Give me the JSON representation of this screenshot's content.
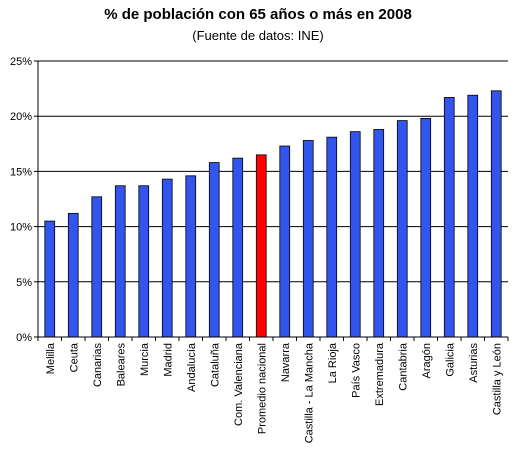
{
  "chart_data": {
    "type": "bar",
    "title": "% de población con 65 años o más en 2008",
    "subtitle": "(Fuente de datos: INE)",
    "xlabel": "",
    "ylabel": "",
    "ylim": [
      0,
      25
    ],
    "yticks": [
      "0%",
      "5%",
      "10%",
      "15%",
      "20%",
      "25%"
    ],
    "ytick_values": [
      0,
      5,
      10,
      15,
      20,
      25
    ],
    "grid": true,
    "categories": [
      "Melilla",
      "Ceuta",
      "Canarias",
      "Baleares",
      "Murcia",
      "Madrid",
      "Andalucía",
      "Cataluña",
      "Com. Valenciana",
      "Promedio nacional",
      "Navarra",
      "Castilla - La Mancha",
      "La Rioja",
      "País Vasco",
      "Extremadura",
      "Cantabria",
      "Aragón",
      "Galicia",
      "Asturias",
      "Castilla y León"
    ],
    "values": [
      10.5,
      11.2,
      12.7,
      13.7,
      13.7,
      14.3,
      14.6,
      15.8,
      16.2,
      16.5,
      17.3,
      17.8,
      18.1,
      18.6,
      18.8,
      19.6,
      19.8,
      21.7,
      21.9,
      22.3
    ],
    "colors": {
      "bar": "#3355ee",
      "highlight": "#ff0000",
      "highlight_index": 9
    }
  }
}
